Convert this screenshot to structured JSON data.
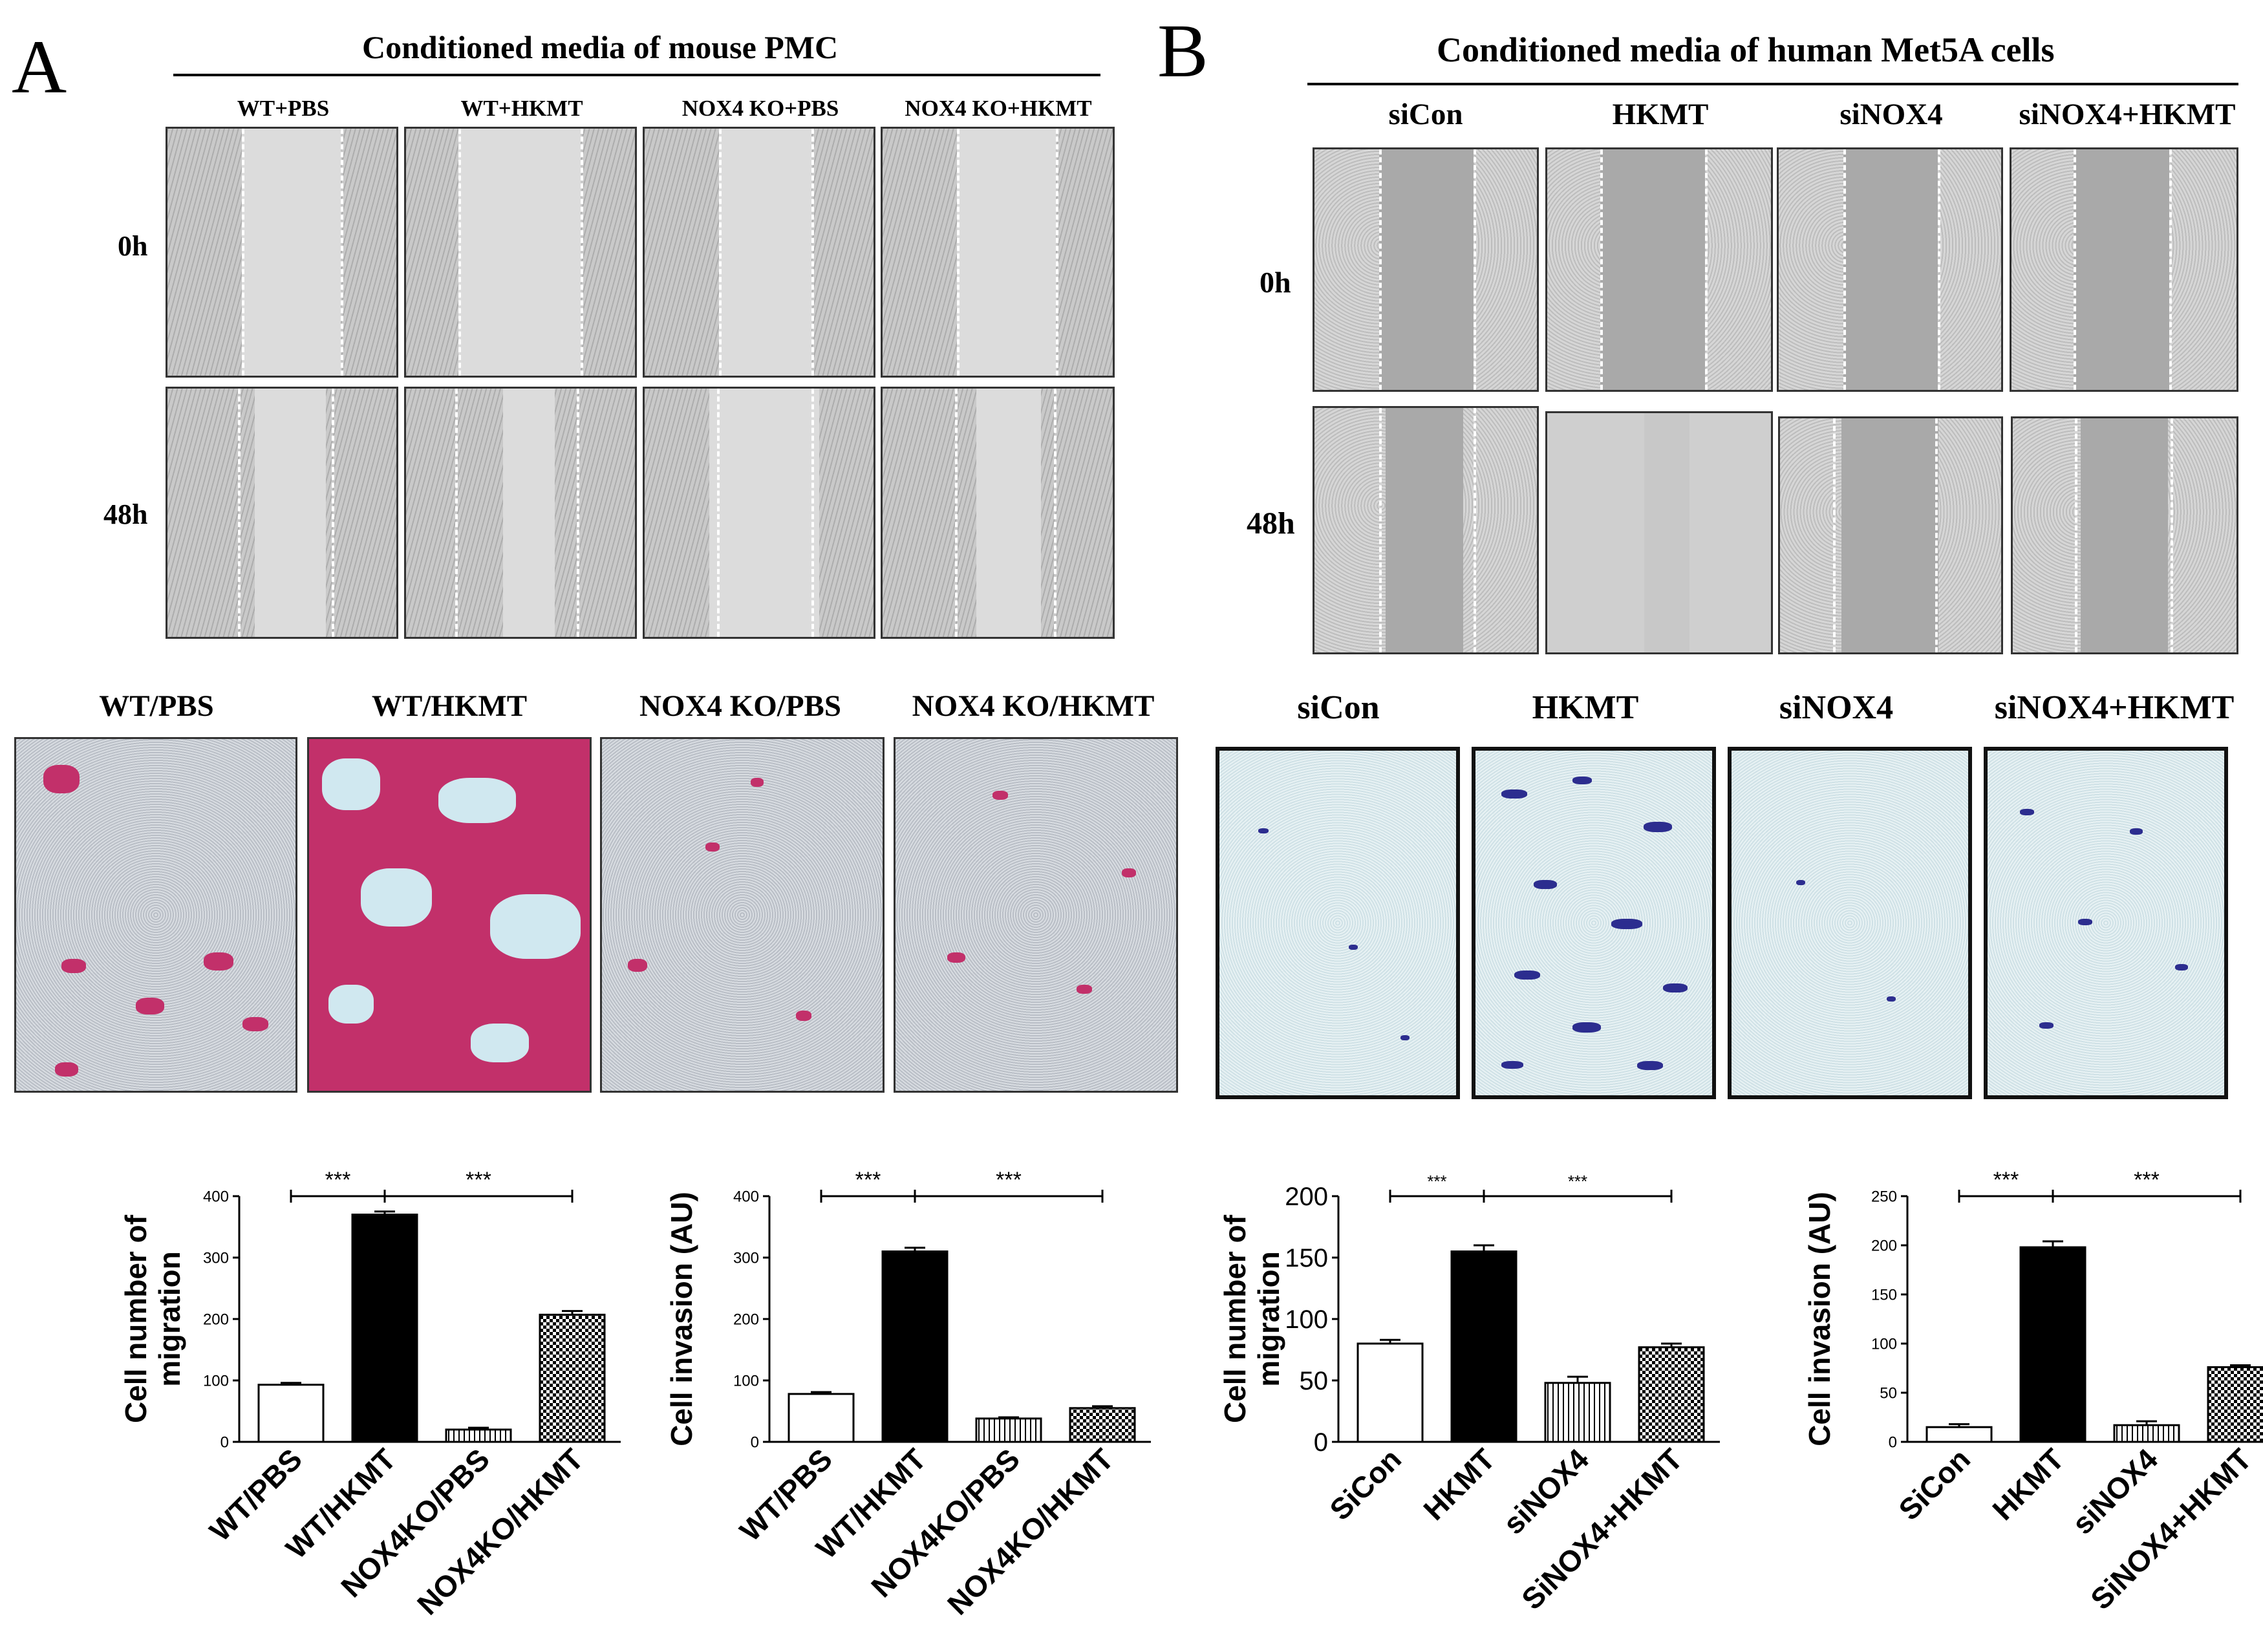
{
  "panels": {
    "a": {
      "letter": "A",
      "title": "Conditioned media of mouse PMC",
      "columns": [
        "WT+PBS",
        "WT+HKMT",
        "NOX4 KO+PBS",
        "NOX4 KO+HKMT"
      ],
      "rows": [
        "0h",
        "48h"
      ],
      "invasion_labels": [
        "WT/PBS",
        "WT/HKMT",
        "NOX4 KO/PBS",
        "NOX4 KO/HKMT"
      ]
    },
    "b": {
      "letter": "B",
      "title": "Conditioned media of human Met5A cells",
      "columns": [
        "siCon",
        "HKMT",
        "siNOX4",
        "siNOX4+HKMT"
      ],
      "rows": [
        "0h",
        "48h"
      ],
      "invasion_labels": [
        "siCon",
        "HKMT",
        "siNOX4",
        "siNOX4+HKMT"
      ]
    }
  },
  "colors": {
    "stain_mouse": "#c2306a",
    "stain_human": "#2c2d8f",
    "bar_black": "#000000"
  },
  "chart_data": [
    {
      "type": "bar",
      "title": "",
      "xlabel": "",
      "ylabel": "Cell number of migration",
      "categories": [
        "WT/PBS",
        "WT/HKMT",
        "NOX4KO/PBS",
        "NOX4KO/HKMT"
      ],
      "values": [
        93,
        370,
        20,
        207
      ],
      "errors": [
        3,
        5,
        3,
        6
      ],
      "fills": [
        "white",
        "black",
        "stripes",
        "checker"
      ],
      "ylim": [
        0,
        400
      ],
      "yticks": [
        0,
        100,
        200,
        300,
        400
      ],
      "significance": [
        {
          "from": 0,
          "to": 1,
          "label": "***"
        },
        {
          "from": 1,
          "to": 3,
          "label": "***"
        }
      ]
    },
    {
      "type": "bar",
      "title": "",
      "xlabel": "",
      "ylabel": "Cell invasion (AU)",
      "categories": [
        "WT/PBS",
        "WT/HKMT",
        "NOX4KO/PBS",
        "NOX4KO/HKMT"
      ],
      "values": [
        78,
        310,
        38,
        55
      ],
      "errors": [
        3,
        6,
        2,
        3
      ],
      "fills": [
        "white",
        "black",
        "stripes",
        "checker"
      ],
      "ylim": [
        0,
        400
      ],
      "yticks": [
        0,
        100,
        200,
        300,
        400
      ],
      "significance": [
        {
          "from": 0,
          "to": 1,
          "label": "***"
        },
        {
          "from": 1,
          "to": 3,
          "label": "***"
        }
      ]
    },
    {
      "type": "bar",
      "title": "",
      "xlabel": "",
      "ylabel": "Cell number of migration",
      "categories": [
        "SiCon",
        "HKMT",
        "siNOX4",
        "SiNOX4+HKMT"
      ],
      "values": [
        80,
        155,
        48,
        77
      ],
      "errors": [
        3,
        5,
        5,
        3
      ],
      "fills": [
        "white",
        "black",
        "stripes",
        "checker"
      ],
      "ylim": [
        0,
        200
      ],
      "yticks": [
        0,
        50,
        100,
        150,
        200
      ],
      "significance": [
        {
          "from": 0,
          "to": 1,
          "label": "***"
        },
        {
          "from": 1,
          "to": 3,
          "label": "***"
        }
      ]
    },
    {
      "type": "bar",
      "title": "",
      "xlabel": "",
      "ylabel": "Cell invasion (AU)",
      "categories": [
        "SiCon",
        "HKMT",
        "siNOX4",
        "SiNOX4+HKMT"
      ],
      "values": [
        15,
        198,
        17,
        76
      ],
      "errors": [
        3,
        6,
        4,
        2
      ],
      "fills": [
        "white",
        "black",
        "stripes",
        "checker"
      ],
      "ylim": [
        0,
        250
      ],
      "yticks": [
        0,
        50,
        100,
        150,
        200,
        250
      ],
      "significance": [
        {
          "from": 0,
          "to": 1,
          "label": "***"
        },
        {
          "from": 1,
          "to": 3,
          "label": "***"
        }
      ]
    }
  ]
}
